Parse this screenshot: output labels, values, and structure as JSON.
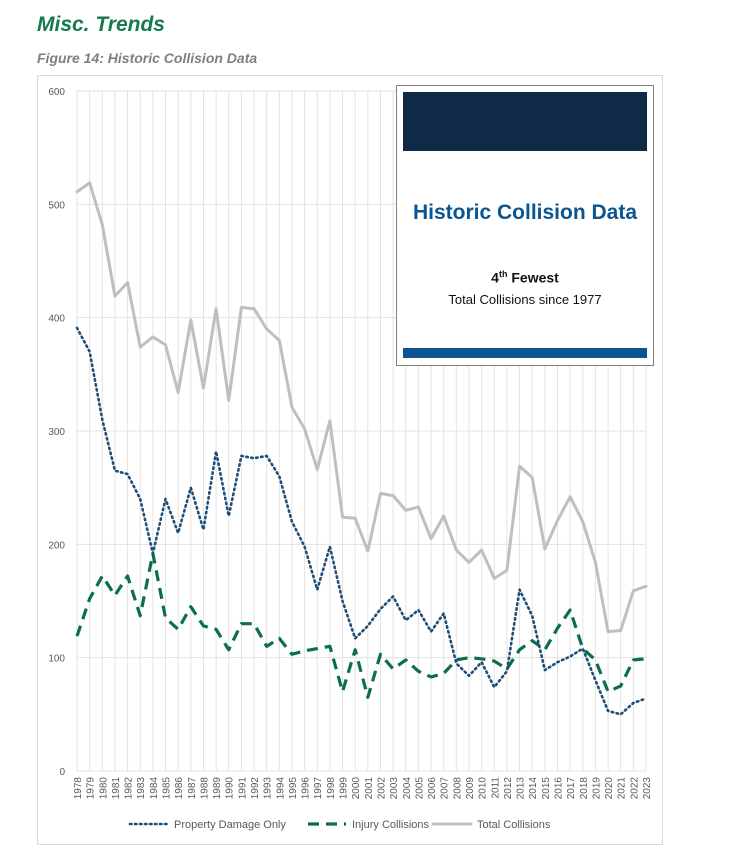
{
  "header": {
    "section_title": "Misc. Trends",
    "figure_title": "Figure 14: Historic Collision Data"
  },
  "inset": {
    "title": "Historic Collision Data",
    "rank_number": "4",
    "rank_suffix": "th",
    "rank_word": "Fewest",
    "subtitle": "Total Collisions since 1977"
  },
  "colors": {
    "pdo": "#1f4e79",
    "injury": "#0b6e4f",
    "total": "#bfbfbf",
    "inset_navy": "#0e2a47",
    "inset_blue": "#0a5592",
    "section": "#167a4e"
  },
  "chart_data": {
    "type": "line",
    "title": "Historic Collision Data",
    "xlabel": "",
    "ylabel": "",
    "ylim": [
      0,
      600
    ],
    "yticks": [
      0,
      100,
      200,
      300,
      400,
      500,
      600
    ],
    "grid": true,
    "legend_position": "bottom",
    "x": [
      1978,
      1979,
      1980,
      1981,
      1982,
      1983,
      1984,
      1985,
      1986,
      1987,
      1988,
      1989,
      1990,
      1991,
      1992,
      1993,
      1994,
      1995,
      1996,
      1997,
      1998,
      1999,
      2000,
      2001,
      2002,
      2003,
      2004,
      2005,
      2006,
      2007,
      2008,
      2009,
      2010,
      2011,
      2012,
      2013,
      2014,
      2015,
      2016,
      2017,
      2018,
      2019,
      2020,
      2021,
      2022,
      2023
    ],
    "series": [
      {
        "name": "Property Damage Only",
        "style": "dotted",
        "values": [
          391,
          370,
          310,
          265,
          262,
          240,
          192,
          240,
          210,
          250,
          213,
          282,
          225,
          278,
          276,
          278,
          260,
          220,
          198,
          160,
          198,
          150,
          117,
          128,
          143,
          154,
          133,
          142,
          123,
          139,
          95,
          84,
          96,
          74,
          88,
          160,
          137,
          89,
          96,
          101,
          108,
          80,
          53,
          50,
          60,
          64
        ]
      },
      {
        "name": "Injury Collisions",
        "style": "dashed",
        "values": [
          119,
          152,
          172,
          155,
          172,
          137,
          192,
          135,
          125,
          145,
          128,
          125,
          107,
          130,
          130,
          110,
          117,
          103,
          106,
          108,
          110,
          70,
          107,
          65,
          103,
          90,
          98,
          88,
          83,
          86,
          98,
          100,
          99,
          97,
          90,
          107,
          115,
          107,
          126,
          142,
          108,
          98,
          70,
          75,
          98,
          99
        ]
      },
      {
        "name": "Total Collisions",
        "style": "solid",
        "values": [
          511,
          519,
          482,
          419,
          431,
          374,
          383,
          376,
          334,
          398,
          338,
          408,
          327,
          409,
          408,
          390,
          380,
          321,
          302,
          266,
          309,
          224,
          223,
          194,
          245,
          243,
          230,
          233,
          205,
          225,
          195,
          184,
          195,
          170,
          177,
          269,
          259,
          196,
          221,
          242,
          220,
          184,
          123,
          124,
          159,
          163
        ]
      }
    ]
  }
}
